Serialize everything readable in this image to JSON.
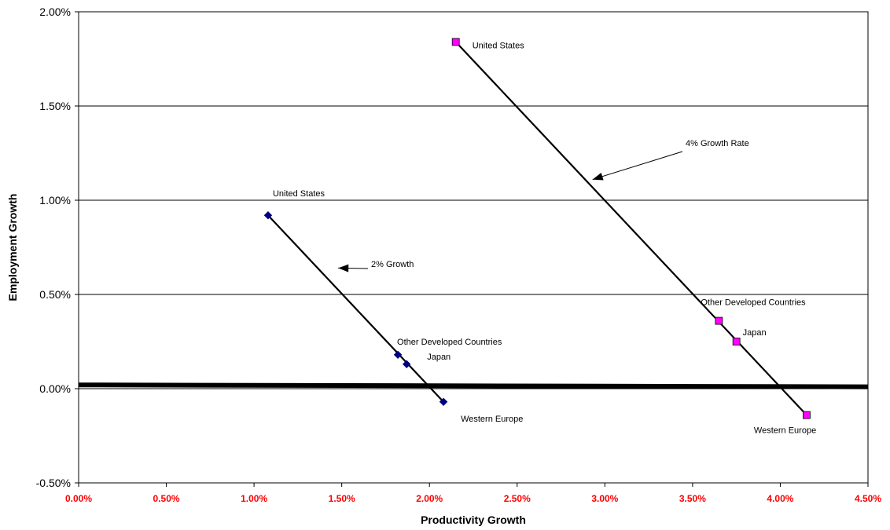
{
  "chart_data": {
    "type": "scatter",
    "xlabel": "Productivity Growth",
    "ylabel": "Employment Growth",
    "xlim": [
      0.0,
      4.5
    ],
    "ylim": [
      -0.5,
      2.0
    ],
    "x_ticks": [
      "0.00%",
      "0.50%",
      "1.00%",
      "1.50%",
      "2.00%",
      "2.50%",
      "3.00%",
      "3.50%",
      "4.00%",
      "4.50%"
    ],
    "x_tick_values": [
      0.0,
      0.5,
      1.0,
      1.5,
      2.0,
      2.5,
      3.0,
      3.5,
      4.0,
      4.5
    ],
    "y_ticks": [
      "-0.50%",
      "0.00%",
      "0.50%",
      "1.00%",
      "1.50%",
      "2.00%"
    ],
    "y_tick_values": [
      -0.5,
      0.0,
      0.5,
      1.0,
      1.5,
      2.0
    ],
    "grid": "horizontal",
    "legend": "none",
    "series": [
      {
        "marker": "diamond",
        "color": "#000080",
        "points": [
          {
            "label": "United States",
            "x": 1.08,
            "y": 0.92
          },
          {
            "label": "Other Developed Countries",
            "x": 1.82,
            "y": 0.18
          },
          {
            "label": "Japan",
            "x": 1.87,
            "y": 0.13
          },
          {
            "label": "Western Europe",
            "x": 2.08,
            "y": -0.07
          }
        ]
      },
      {
        "marker": "square",
        "color": "#FF00FF",
        "points": [
          {
            "label": "United States",
            "x": 2.15,
            "y": 1.84
          },
          {
            "label": "Other Developed Countries",
            "x": 3.65,
            "y": 0.36
          },
          {
            "label": "Japan",
            "x": 3.75,
            "y": 0.25
          },
          {
            "label": "Western Europe",
            "x": 4.15,
            "y": -0.14
          }
        ]
      }
    ],
    "annotations": [
      {
        "text": "2% Growth",
        "arrow_to": {
          "x": 1.48,
          "y": 0.64
        }
      },
      {
        "text": "4% Growth Rate",
        "arrow_to": {
          "x": 2.93,
          "y": 1.11
        }
      }
    ],
    "reference_line": {
      "from": {
        "x": 0.0,
        "y": 0.02
      },
      "to": {
        "x": 4.5,
        "y": 0.01
      }
    },
    "tick_color_x": "#FF0000",
    "tick_color_y": "#000000"
  }
}
